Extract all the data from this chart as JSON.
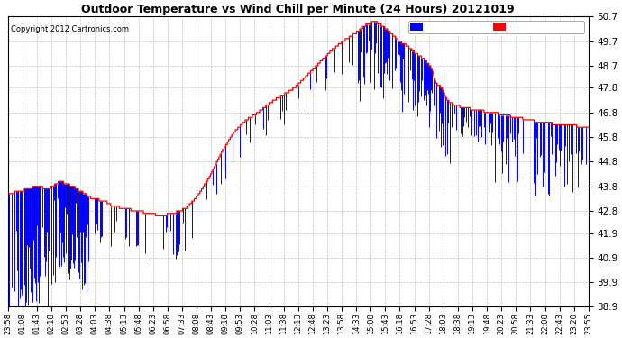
{
  "title": "Outdoor Temperature vs Wind Chill per Minute (24 Hours) 20121019",
  "copyright": "Copyright 2012 Cartronics.com",
  "legend_wind": "Wind Chill (°F)",
  "legend_temp": "Temperature (°F)",
  "ylim": [
    38.9,
    50.7
  ],
  "yticks": [
    38.9,
    39.9,
    40.9,
    41.9,
    42.8,
    43.8,
    44.8,
    45.8,
    46.8,
    47.8,
    48.7,
    49.7,
    50.7
  ],
  "bg_color": "#ffffff",
  "grid_color": "#999999",
  "temp_color": "#ff0000",
  "wind_color": "#0000ff",
  "legend_wind_bg": "#0000ff",
  "legend_temp_bg": "#ff0000",
  "xtick_labels": [
    "23:58",
    "01:08",
    "01:43",
    "02:18",
    "02:53",
    "03:28",
    "04:03",
    "04:38",
    "05:13",
    "05:48",
    "06:23",
    "06:58",
    "07:33",
    "08:08",
    "08:43",
    "09:18",
    "09:53",
    "10:28",
    "11:03",
    "11:38",
    "12:13",
    "12:48",
    "13:23",
    "13:58",
    "14:33",
    "15:08",
    "15:43",
    "16:18",
    "16:53",
    "17:28",
    "18:03",
    "18:38",
    "19:13",
    "19:48",
    "20:23",
    "20:58",
    "21:33",
    "22:08",
    "22:43",
    "23:20",
    "23:55"
  ]
}
